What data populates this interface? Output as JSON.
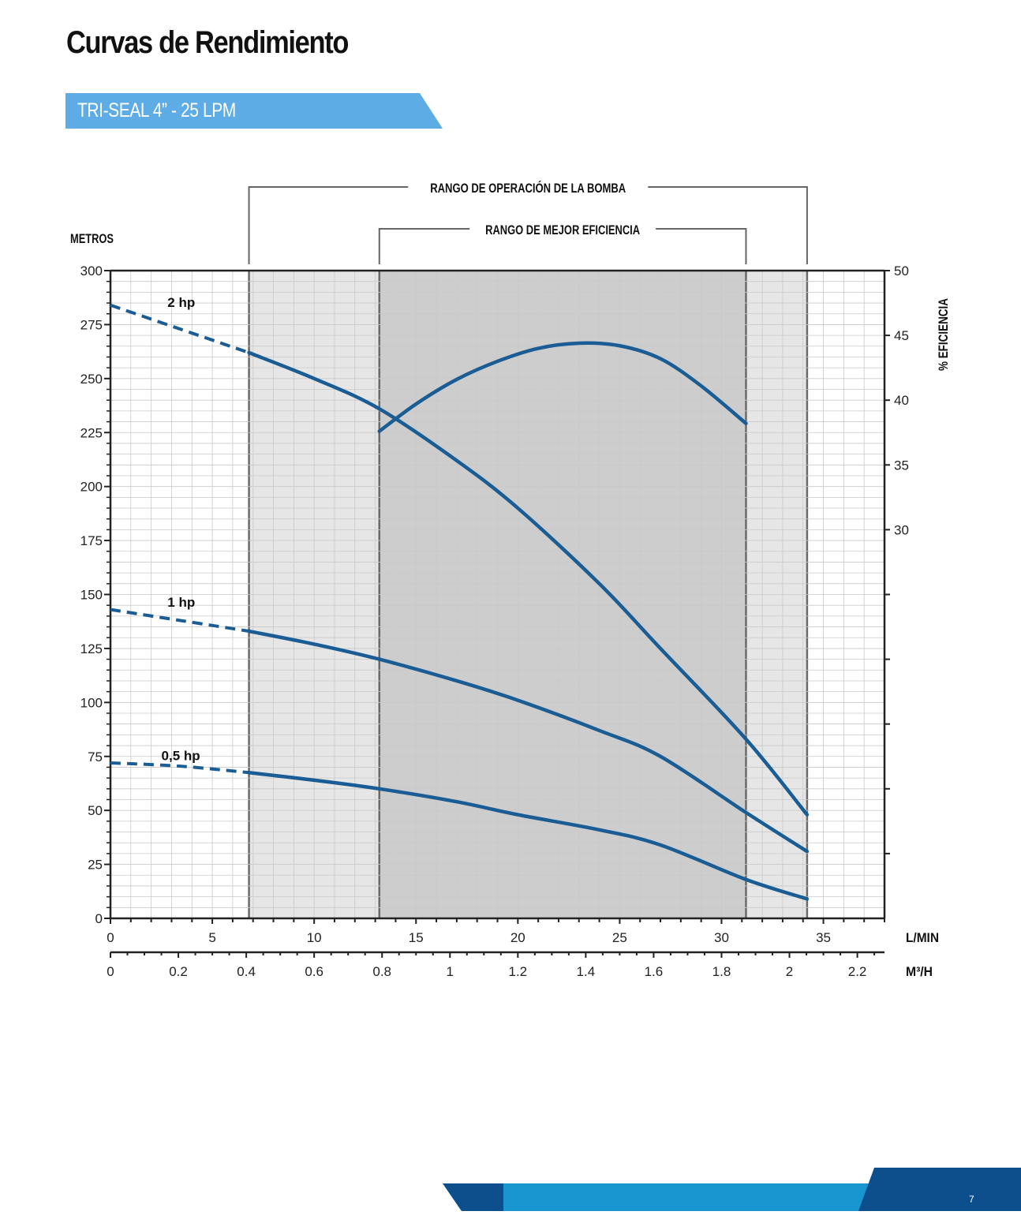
{
  "page": {
    "title": "Curvas de Rendimiento",
    "subtitle": "TRI-SEAL 4” - 25 LPM",
    "page_number": "7"
  },
  "colors": {
    "curve": "#1a5c94",
    "banner": "#5dace6",
    "operating_range_fill": "#e6e6e6",
    "best_efficiency_fill": "#cdcdcd",
    "footer_dark": "#0d4e8d",
    "footer_light": "#1896d0"
  },
  "chart_data": {
    "type": "line",
    "annotations": {
      "operating_range_label": "RANGO DE OPERACIÓN DE LA BOMBA",
      "operating_range_lpm": [
        6.8,
        34.2
      ],
      "best_efficiency_label": "RANGO DE MEJOR EFICIENCIA",
      "best_efficiency_lpm": [
        13.2,
        31.2
      ]
    },
    "y_left": {
      "label": "METROS",
      "range": [
        0,
        300
      ],
      "ticks": [
        "0",
        "25",
        "50",
        "75",
        "100",
        "125",
        "150",
        "175",
        "200",
        "225",
        "250",
        "275",
        "300"
      ]
    },
    "y_right": {
      "label": "% EFICIENCIA",
      "range": [
        0,
        50
      ],
      "ticks": [
        "30",
        "35",
        "40",
        "45",
        "50"
      ]
    },
    "x_lpm": {
      "label": "L/MIN",
      "range": [
        0,
        38
      ],
      "ticks": [
        "0",
        "5",
        "10",
        "15",
        "20",
        "25",
        "30",
        "35"
      ]
    },
    "x_m3h": {
      "label": "M³/H",
      "tick_values": [
        0,
        0.2,
        0.4,
        0.6,
        0.8,
        1,
        1.2,
        1.4,
        1.6,
        1.8,
        2,
        2.2
      ],
      "tick_labels": [
        "0",
        "0.2",
        "0.4",
        "0.6",
        "0.8",
        "1",
        "1.2",
        "1.4",
        "1.6",
        "1.8",
        "2",
        "2.2"
      ]
    },
    "grid": true,
    "series": [
      {
        "name": "2 hp",
        "axis": "left",
        "dashed": {
          "x": [
            0,
            3.4,
            6.8
          ],
          "y": [
            284,
            273,
            262
          ]
        },
        "solid": {
          "x": [
            6.8,
            10,
            13.2,
            17,
            20,
            24,
            27,
            31.2,
            34.2
          ],
          "y": [
            262,
            250,
            236,
            212,
            190,
            155,
            125,
            83,
            48
          ]
        }
      },
      {
        "name": "1 hp",
        "axis": "left",
        "dashed": {
          "x": [
            0,
            3.4,
            6.8
          ],
          "y": [
            143,
            138,
            133
          ]
        },
        "solid": {
          "x": [
            6.8,
            10,
            13.2,
            17,
            20,
            24,
            27,
            31.2,
            34.2
          ],
          "y": [
            133,
            127,
            120,
            110,
            101,
            87,
            75,
            49,
            31
          ]
        }
      },
      {
        "name": "0,5 hp",
        "axis": "left",
        "dashed": {
          "x": [
            0,
            3.4,
            6.8
          ],
          "y": [
            72,
            70.5,
            67.5
          ]
        },
        "solid": {
          "x": [
            6.8,
            10,
            13.2,
            17,
            20,
            24,
            27,
            31.2,
            34.2
          ],
          "y": [
            67.5,
            64,
            60,
            54,
            48,
            41,
            34,
            18,
            9
          ]
        }
      },
      {
        "name": "% EFICIENCIA",
        "axis": "right",
        "solid": {
          "x": [
            13.2,
            15,
            17,
            19,
            21,
            23,
            25,
            27,
            29,
            31.2
          ],
          "y": [
            37.6,
            39.7,
            41.6,
            43.0,
            44.0,
            44.4,
            44.2,
            43.2,
            41.1,
            38.2
          ]
        }
      }
    ]
  }
}
